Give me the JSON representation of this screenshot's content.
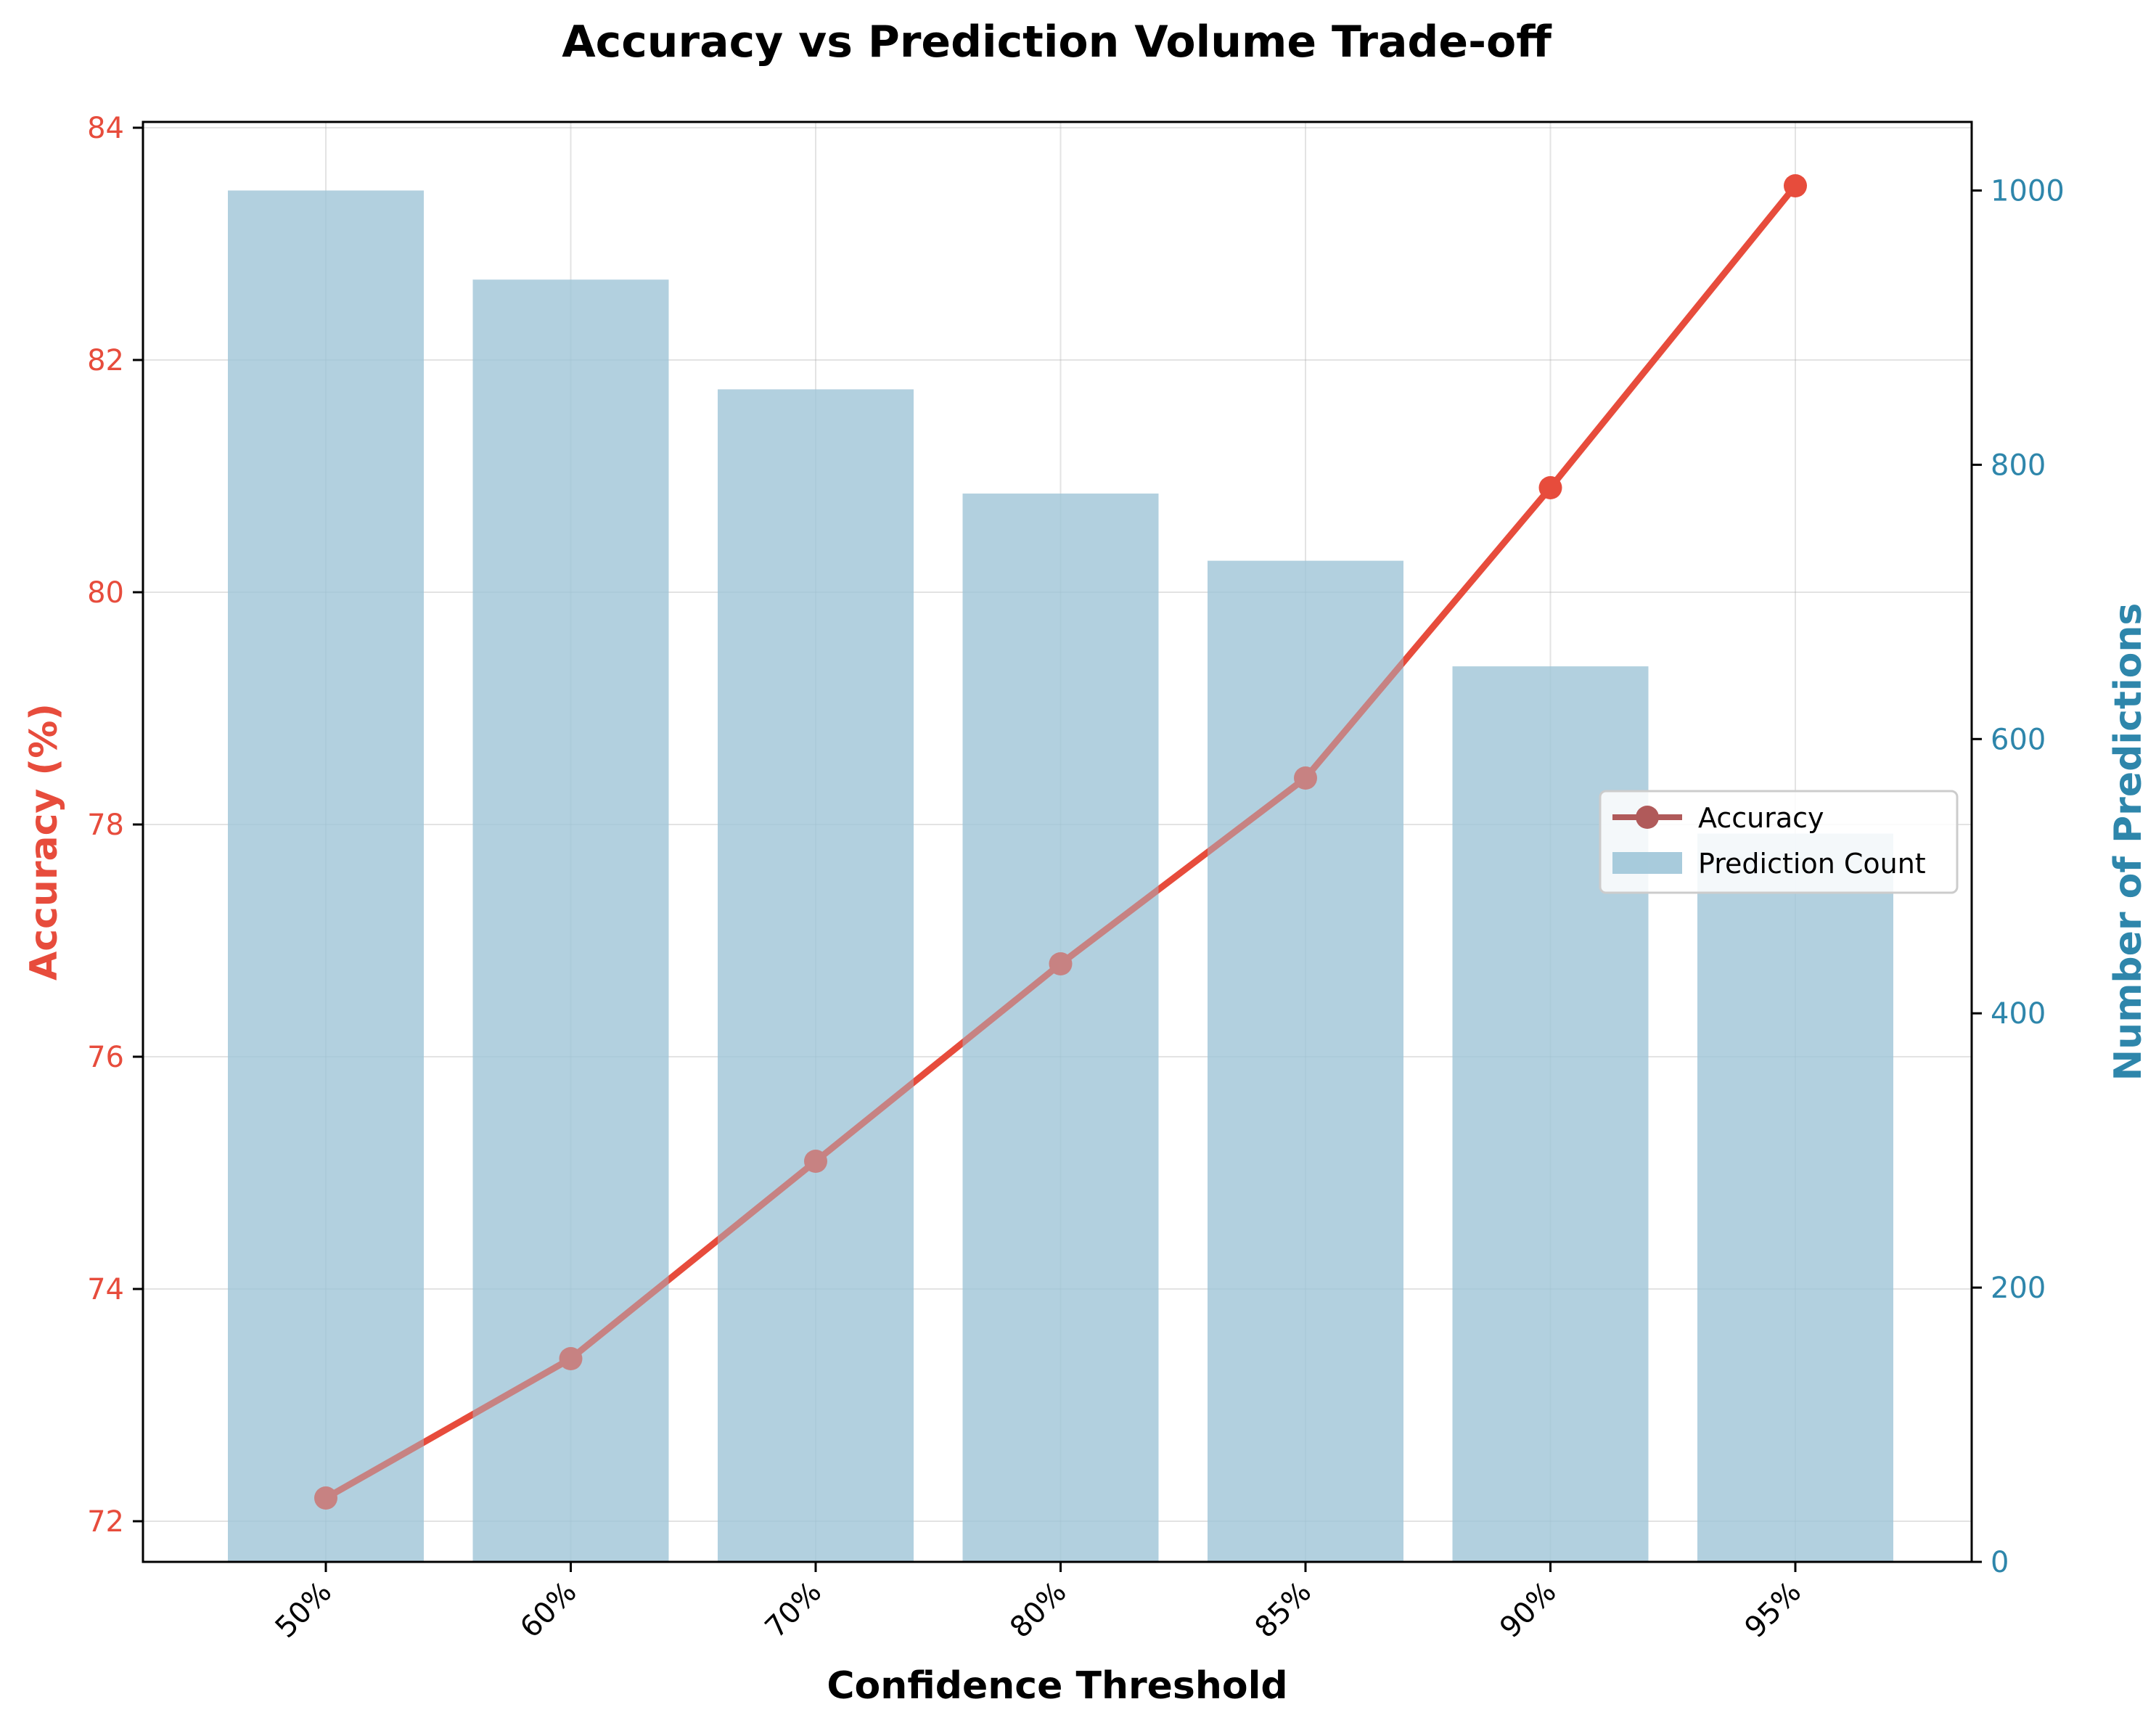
{
  "chart_data": {
    "type": "bar+line",
    "title": "Accuracy vs Prediction Volume Trade-off",
    "xlabel": "Confidence Threshold",
    "ylabel_left": "Accuracy (%)",
    "ylabel_right": "Number of Predictions",
    "categories": [
      "50%",
      "60%",
      "70%",
      "80%",
      "85%",
      "90%",
      "95%"
    ],
    "series": [
      {
        "name": "Accuracy",
        "kind": "line",
        "axis": "left",
        "values": [
          72.2,
          73.4,
          75.1,
          76.8,
          78.4,
          80.9,
          83.5
        ]
      },
      {
        "name": "Prediction Count",
        "kind": "bar",
        "axis": "right",
        "values": [
          1000,
          935,
          855,
          779,
          730,
          653,
          531
        ]
      }
    ],
    "ylim_left": [
      71.65,
      84.05
    ],
    "ylim_right": [
      0,
      1050
    ],
    "yticks_left": [
      "72",
      "74",
      "76",
      "78",
      "80",
      "82",
      "84"
    ],
    "yticks_right": [
      "0",
      "200",
      "400",
      "600",
      "800",
      "1000"
    ],
    "grid": true,
    "legend_position": "center-right",
    "colors": {
      "accuracy": "#e74c3c",
      "accuracy_under_bars": "#b05a5a",
      "bars": "#9fc5d8",
      "left_axis": "#e74c3c",
      "right_axis": "#2e86ab"
    }
  }
}
